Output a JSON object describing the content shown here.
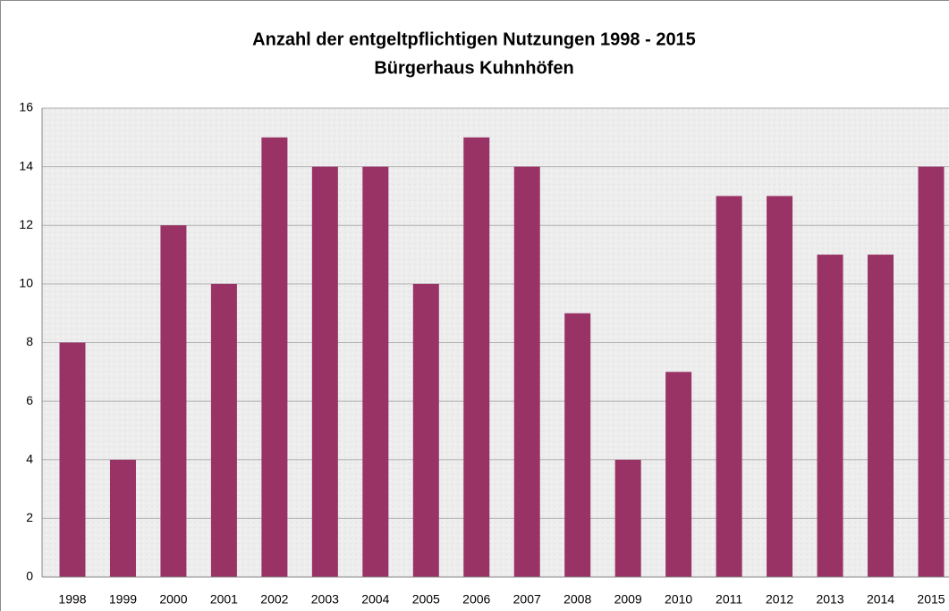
{
  "chart_data": {
    "type": "bar",
    "title": "Anzahl der entgeltpflichtigen Nutzungen 1998 - 2015",
    "subtitle": "Bürgerhaus Kuhnhöfen",
    "categories": [
      "1998",
      "1999",
      "2000",
      "2001",
      "2002",
      "2003",
      "2004",
      "2005",
      "2006",
      "2007",
      "2008",
      "2009",
      "2010",
      "2011",
      "2012",
      "2013",
      "2014",
      "2015"
    ],
    "values": [
      8,
      4,
      12,
      10,
      15,
      14,
      14,
      10,
      15,
      14,
      9,
      4,
      7,
      13,
      13,
      11,
      11,
      14
    ],
    "color": "#993366",
    "ylim": [
      0,
      16
    ],
    "yticks": [
      0,
      2,
      4,
      6,
      8,
      10,
      12,
      14,
      16
    ],
    "grid": true
  }
}
